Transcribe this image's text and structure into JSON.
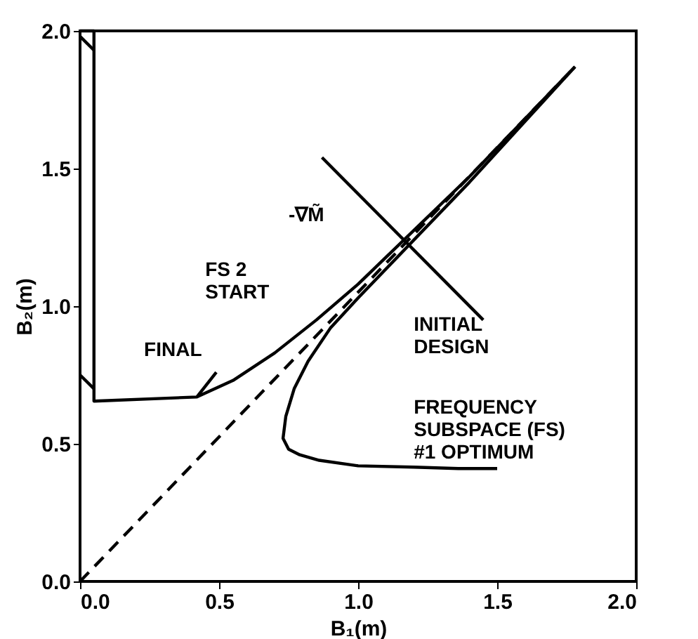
{
  "chart_data": {
    "type": "line",
    "xlabel": "B₁(m)",
    "ylabel": "B₂(m)",
    "xlim": [
      0,
      2
    ],
    "ylim": [
      0,
      2
    ],
    "xticks": [
      {
        "value": 0,
        "label": "0.0"
      },
      0.5,
      {
        "value": 1,
        "label": "1.0"
      },
      1.5,
      {
        "value": 2,
        "label": "2.0"
      }
    ],
    "yticks": [
      {
        "value": 0,
        "label": "0.0"
      },
      0.5,
      {
        "value": 1,
        "label": "1.0"
      },
      1.5,
      {
        "value": 2,
        "label": "2.0"
      }
    ],
    "grid": false,
    "marker": "none",
    "series": [
      {
        "color": "#000000",
        "line_style": "dashed",
        "x": [
          0,
          1.78
        ],
        "values": [
          0,
          1.87
        ]
      },
      {
        "color": "#000000",
        "line_style": "solid",
        "x": [
          1.78,
          1.4,
          1.0,
          0.9,
          0.82,
          0.77,
          0.74,
          0.73,
          0.75,
          0.79,
          0.86,
          1.0,
          1.2,
          1.36,
          1.5
        ],
        "values": [
          1.87,
          1.45,
          1.03,
          0.92,
          0.8,
          0.7,
          0.6,
          0.52,
          0.48,
          0.46,
          0.44,
          0.42,
          0.415,
          0.41,
          0.41
        ]
      },
      {
        "color": "#000000",
        "line_style": "solid",
        "x": [
          0.42,
          0.55,
          0.7,
          0.85,
          1.0,
          1.4,
          1.78
        ],
        "values": [
          0.67,
          0.73,
          0.83,
          0.95,
          1.08,
          1.47,
          1.87
        ]
      },
      {
        "color": "#000000",
        "line_style": "solid",
        "x": [
          0.49,
          0.42,
          0.05,
          0.05,
          0.0
        ],
        "values": [
          0.76,
          0.67,
          0.655,
          2.0,
          2.0
        ]
      },
      {
        "color": "#000000",
        "line_style": "solid",
        "x": [
          0.0,
          0.05
        ],
        "values": [
          0.75,
          0.7
        ]
      },
      {
        "color": "#000000",
        "line_style": "solid",
        "x": [
          0.0,
          0.05
        ],
        "values": [
          1.98,
          1.93
        ]
      },
      {
        "color": "#000000",
        "line_style": "solid",
        "x": [
          0.87,
          1.45
        ],
        "values": [
          1.54,
          0.95
        ]
      }
    ],
    "annotations": [
      "-∇M̃",
      "FS 2\nSTART",
      "FINAL",
      "INITIAL\nDESIGN",
      "FREQUENCY\nSUBSPACE (FS)\n#1 OPTIMUM"
    ]
  }
}
